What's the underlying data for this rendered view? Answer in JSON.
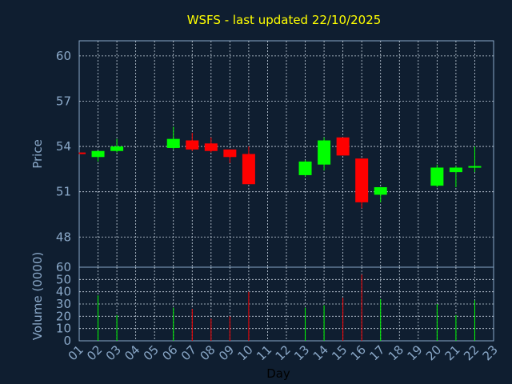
{
  "title": "WSFS - last updated 22/10/2025",
  "colors": {
    "up": "#00ff00",
    "down": "#ff0000",
    "background": "#0f1e30",
    "text": "#8aa8c8",
    "title": "#ffff00",
    "grid": "#c8d4e0"
  },
  "chart_data": [
    {
      "type": "candlestick",
      "ylabel": "Price",
      "ylim": [
        46,
        61
      ],
      "yticks": [
        48,
        51,
        54,
        57,
        60
      ],
      "grid": true,
      "candles": [
        {
          "day": "01",
          "open": 53.6,
          "high": 53.6,
          "low": 53.5,
          "close": 53.5
        },
        {
          "day": "02",
          "open": 53.3,
          "high": 53.7,
          "low": 53.0,
          "close": 53.7
        },
        {
          "day": "03",
          "open": 53.7,
          "high": 54.5,
          "low": 53.6,
          "close": 54.0
        },
        {
          "day": "06",
          "open": 53.9,
          "high": 55.3,
          "low": 53.8,
          "close": 54.5
        },
        {
          "day": "07",
          "open": 54.4,
          "high": 54.9,
          "low": 53.7,
          "close": 53.8
        },
        {
          "day": "08",
          "open": 54.2,
          "high": 54.6,
          "low": 53.6,
          "close": 53.7
        },
        {
          "day": "09",
          "open": 53.8,
          "high": 53.8,
          "low": 52.9,
          "close": 53.3
        },
        {
          "day": "10",
          "open": 53.5,
          "high": 54.0,
          "low": 51.5,
          "close": 51.5
        },
        {
          "day": "13",
          "open": 52.1,
          "high": 53.1,
          "low": 52.0,
          "close": 53.0
        },
        {
          "day": "14",
          "open": 52.8,
          "high": 54.6,
          "low": 52.4,
          "close": 54.4
        },
        {
          "day": "15",
          "open": 54.6,
          "high": 54.6,
          "low": 53.4,
          "close": 53.4
        },
        {
          "day": "16",
          "open": 53.2,
          "high": 53.2,
          "low": 49.9,
          "close": 50.3
        },
        {
          "day": "17",
          "open": 50.8,
          "high": 51.3,
          "low": 50.3,
          "close": 51.3
        },
        {
          "day": "20",
          "open": 51.4,
          "high": 52.8,
          "low": 51.3,
          "close": 52.6
        },
        {
          "day": "21",
          "open": 52.3,
          "high": 52.7,
          "low": 51.3,
          "close": 52.6
        },
        {
          "day": "22",
          "open": 52.6,
          "high": 54.0,
          "low": 52.3,
          "close": 52.7
        }
      ]
    },
    {
      "type": "bar",
      "ylabel": "Volume (0000)",
      "xlabel": "Day",
      "ylim": [
        0,
        60
      ],
      "yticks": [
        0,
        10,
        20,
        30,
        40,
        50,
        60
      ],
      "categories": [
        "01",
        "02",
        "03",
        "04",
        "05",
        "06",
        "07",
        "08",
        "09",
        "10",
        "11",
        "12",
        "13",
        "14",
        "15",
        "16",
        "17",
        "18",
        "19",
        "20",
        "21",
        "22",
        "23"
      ],
      "volumes": [
        {
          "day": "02",
          "value": 37,
          "direction": "up"
        },
        {
          "day": "03",
          "value": 21,
          "direction": "up"
        },
        {
          "day": "06",
          "value": 27,
          "direction": "up"
        },
        {
          "day": "07",
          "value": 26,
          "direction": "down"
        },
        {
          "day": "08",
          "value": 18,
          "direction": "down"
        },
        {
          "day": "09",
          "value": 20,
          "direction": "down"
        },
        {
          "day": "10",
          "value": 40,
          "direction": "down"
        },
        {
          "day": "13",
          "value": 27,
          "direction": "up"
        },
        {
          "day": "14",
          "value": 29,
          "direction": "up"
        },
        {
          "day": "15",
          "value": 35,
          "direction": "down"
        },
        {
          "day": "16",
          "value": 54,
          "direction": "down"
        },
        {
          "day": "17",
          "value": 34,
          "direction": "up"
        },
        {
          "day": "20",
          "value": 30,
          "direction": "up"
        },
        {
          "day": "21",
          "value": 21,
          "direction": "up"
        },
        {
          "day": "22",
          "value": 33,
          "direction": "up"
        }
      ]
    }
  ]
}
